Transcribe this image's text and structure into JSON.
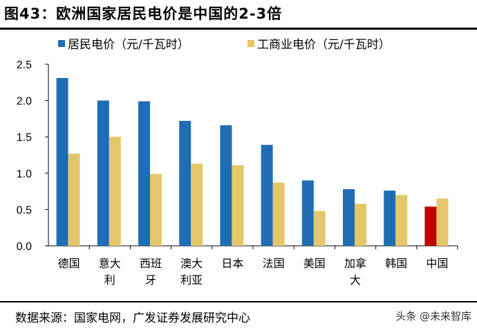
{
  "title": "图43：欧洲国家居民电价是中国的2-3倍",
  "source": "数据来源：国家电网，广发证券发展研究中心",
  "watermark": "头条 @未来智库",
  "chart_data": {
    "type": "bar",
    "title": "图43：欧洲国家居民电价是中国的2-3倍",
    "categories": [
      "德国",
      "意大利",
      "西班牙",
      "澳大利亚",
      "日本",
      "法国",
      "美国",
      "加拿大",
      "韩国",
      "中国"
    ],
    "series": [
      {
        "name": "居民电价（元/千瓦时）",
        "color": "#1f6db3",
        "highlight": {
          "中国": "#c00000"
        },
        "values": [
          2.31,
          2.0,
          1.99,
          1.72,
          1.66,
          1.39,
          0.9,
          0.78,
          0.76,
          0.54
        ]
      },
      {
        "name": "工商业电价（元/千瓦时）",
        "color": "#e5c76b",
        "values": [
          1.27,
          1.5,
          0.99,
          1.13,
          1.11,
          0.87,
          0.48,
          0.58,
          0.7,
          0.65
        ]
      }
    ],
    "ylim": [
      0,
      2.5
    ],
    "yticks": [
      "0.0",
      "0.5",
      "1.0",
      "1.5",
      "2.0",
      "2.5"
    ],
    "grid": false,
    "legend": "top"
  }
}
